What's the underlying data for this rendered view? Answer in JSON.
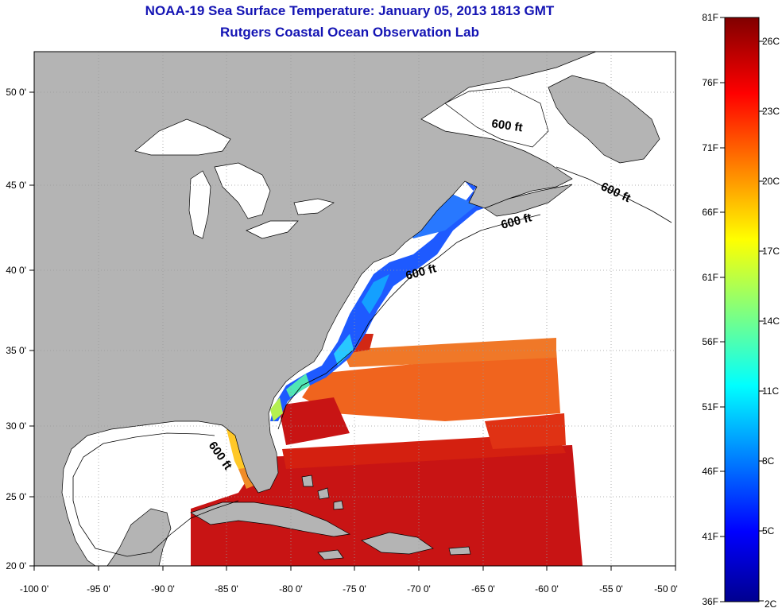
{
  "title": "NOAA-19 Sea Surface Temperature:  January 05, 2013 1813 GMT",
  "subtitle": "Rutgers Coastal Ocean Observation Lab",
  "map": {
    "lon_ticks": [
      "-100 0'",
      "-95 0'",
      "-90 0'",
      "-85 0'",
      "-80 0'",
      "-75 0'",
      "-70 0'",
      "-65 0'",
      "-60 0'",
      "-55 0'",
      "-50 0'"
    ],
    "lat_ticks": [
      "50 0'",
      "45 0'",
      "40 0'",
      "35 0'",
      "30 0'",
      "25 0'",
      "20 0'"
    ],
    "contour_labels": [
      "600 ft",
      "600 ft",
      "600 ft",
      "600 ft",
      "600 ft"
    ],
    "colors": {
      "land": "#b4b4b4",
      "no_data": "#ffffff",
      "grid": "#888888"
    }
  },
  "colorbar": {
    "fahrenheit_labels": [
      "81F",
      "76F",
      "71F",
      "66F",
      "61F",
      "56F",
      "51F",
      "46F",
      "41F",
      "36F"
    ],
    "celsius_labels": [
      "26C",
      "23C",
      "20C",
      "17C",
      "14C",
      "11C",
      "8C",
      "5C",
      "2C"
    ],
    "colormap": "jet",
    "range_f": [
      36,
      81
    ]
  }
}
